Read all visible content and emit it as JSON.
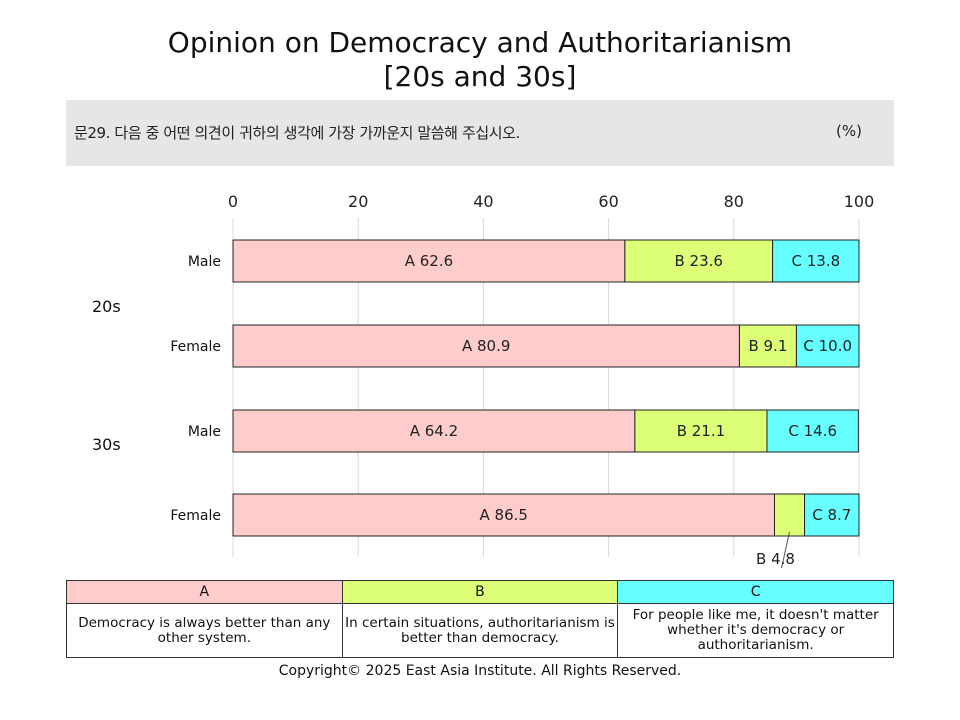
{
  "title": {
    "line1": "Opinion on Democracy and Authoritarianism",
    "line2": "[20s and 30s]"
  },
  "question": {
    "text": "문29. 다음 중 어떤 의견이 귀하의 생각에 가장 가까운지 말씀해 주십시오.",
    "unit": "(%)"
  },
  "chart_data": {
    "type": "bar",
    "orientation": "horizontal",
    "stacked": true,
    "xlim": [
      0,
      100
    ],
    "x_ticks": [
      "0",
      "20",
      "40",
      "60",
      "80",
      "100"
    ],
    "grid": true,
    "groups": [
      {
        "label": "20s",
        "rows": [
          "Male",
          "Female"
        ]
      },
      {
        "label": "30s",
        "rows": [
          "Male",
          "Female"
        ]
      }
    ],
    "categories": [
      "Male",
      "Female",
      "Male",
      "Female"
    ],
    "series": [
      {
        "name": "A",
        "color": "#ffcccc",
        "values": [
          62.6,
          80.9,
          64.2,
          86.5
        ],
        "labels": [
          "A 62.6",
          "A 80.9",
          "A 64.2",
          "A 86.5"
        ]
      },
      {
        "name": "B",
        "color": "#ddff77",
        "values": [
          23.6,
          9.1,
          21.1,
          4.8
        ],
        "labels": [
          "B 23.6",
          "B 9.1",
          "B 21.1",
          "B 4.8"
        ]
      },
      {
        "name": "C",
        "color": "#66ffff",
        "values": [
          13.8,
          10.0,
          14.6,
          8.7
        ],
        "labels": [
          "C 13.8",
          "C 10.0",
          "C 14.6",
          "C 8.7"
        ]
      }
    ]
  },
  "legend": {
    "headers": [
      "A",
      "B",
      "C"
    ],
    "descriptions": [
      "Democracy is always better than any other system.",
      "In certain situations, authoritarianism is better than democracy.",
      "For people like me, it doesn't matter whether it's democracy or authoritarianism."
    ]
  },
  "copyright": "Copyright© 2025 East Asia Institute. All Rights Reserved."
}
